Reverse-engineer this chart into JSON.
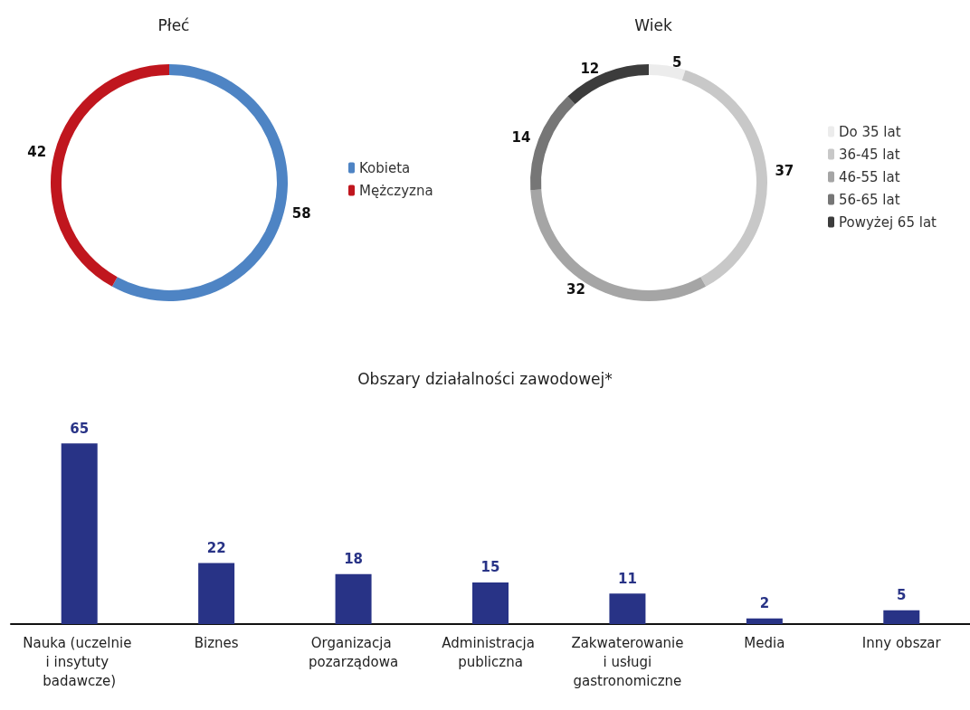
{
  "chart_data": [
    {
      "type": "donut",
      "title": "Płeć",
      "categories": [
        "Kobieta",
        "Mężczyzna"
      ],
      "values": [
        58,
        42
      ],
      "colors": [
        "#4e84c4",
        "#c0161e"
      ],
      "data_labels": true,
      "legend": "right"
    },
    {
      "type": "donut",
      "title": "Wiek",
      "categories": [
        "Do 35 lat",
        "36-45 lat",
        "46-55 lat",
        "56-65 lat",
        "Powyżej 65 lat"
      ],
      "values": [
        5,
        37,
        32,
        14,
        12
      ],
      "colors": [
        "#ececec",
        "#c8c8c8",
        "#a5a5a5",
        "#767676",
        "#3c3c3c"
      ],
      "data_labels": true,
      "legend": "right"
    },
    {
      "type": "bar",
      "title": "Obszary działalności zawodowej*",
      "categories": [
        "Nauka (uczelnie i insytuty badawcze)",
        "Biznes",
        "Organizacja pozarządowa",
        "Administracja publiczna",
        "Zakwaterowanie i usługi gastronomiczne",
        "Media",
        "Inny obszar"
      ],
      "values": [
        65,
        22,
        18,
        15,
        11,
        2,
        5
      ],
      "color": "#283386",
      "data_labels": true,
      "tick_labels": "x"
    }
  ]
}
